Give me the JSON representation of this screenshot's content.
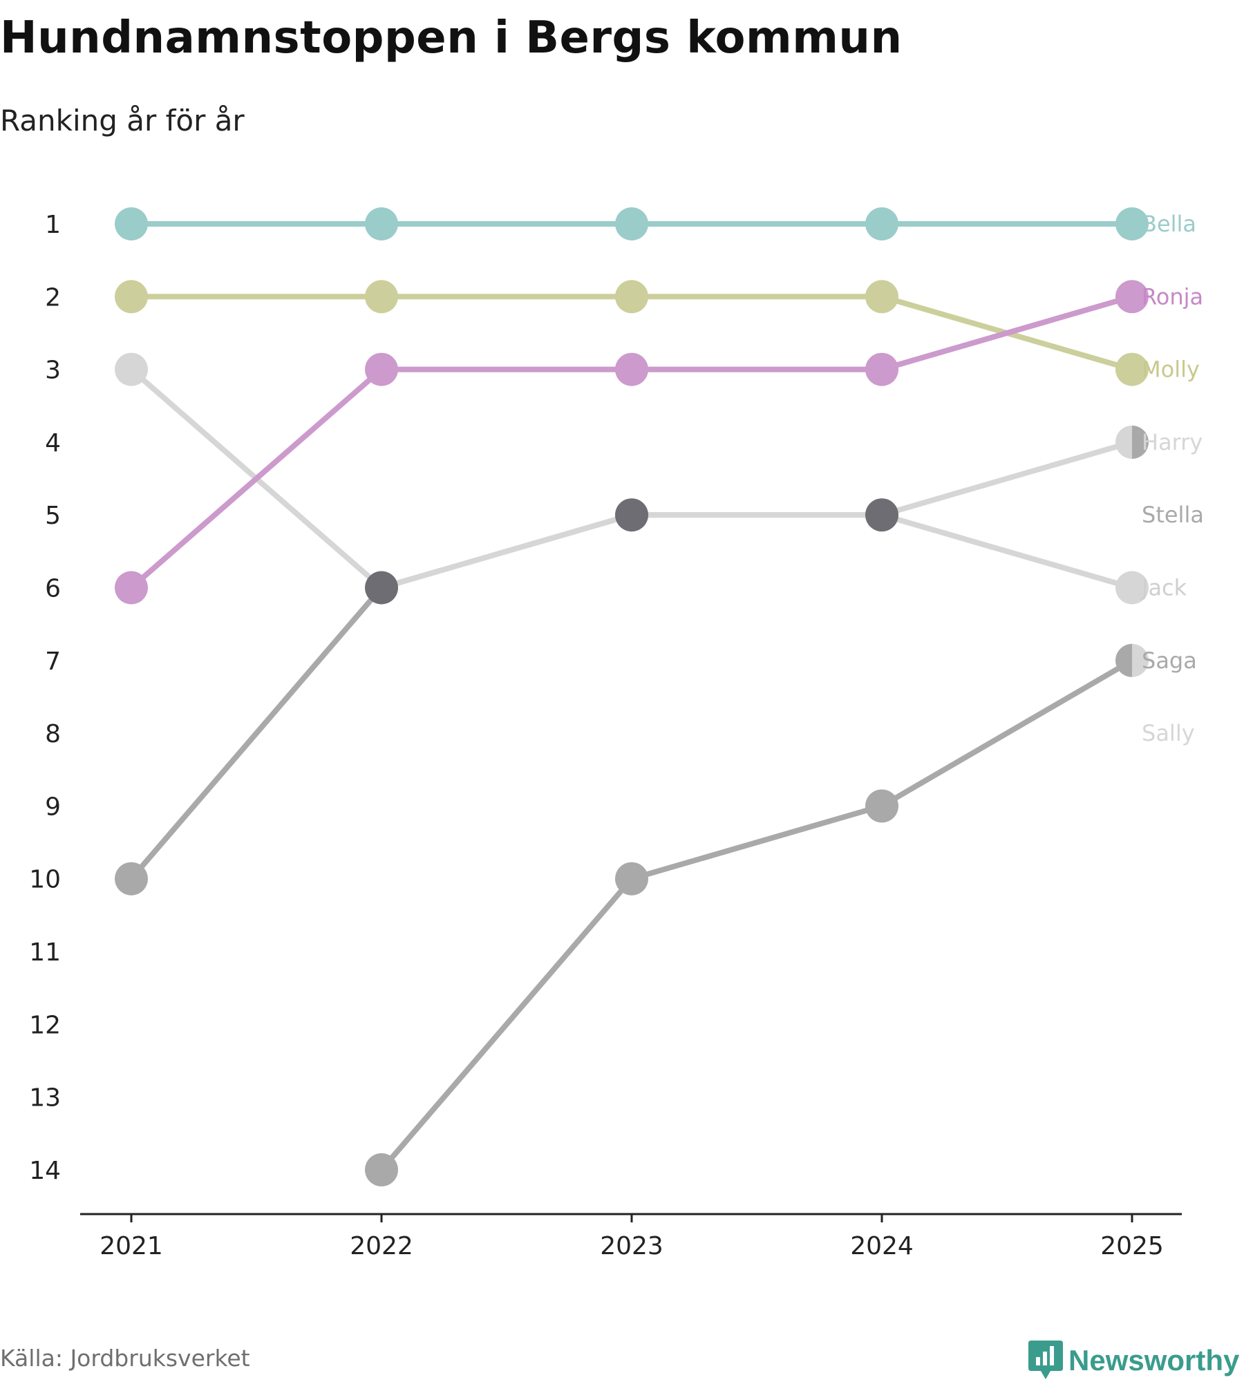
{
  "header": {
    "title": "Hundnamnstoppen i Bergs kommun",
    "subtitle": "Ranking år för år"
  },
  "footer": {
    "source": "Källa: Jordbruksverket",
    "brand": "Newsworthy",
    "brand_color": "#3a9c8d"
  },
  "chart_data": {
    "type": "line",
    "subtype": "bump",
    "title": "Hundnamnstoppen i Bergs kommun",
    "subtitle": "Ranking år för år",
    "xlabel": "",
    "ylabel": "",
    "x": [
      "2021",
      "2022",
      "2023",
      "2024",
      "2025"
    ],
    "y_ticks": [
      "1",
      "2",
      "3",
      "4",
      "5",
      "6",
      "7",
      "8",
      "9",
      "10",
      "11",
      "12",
      "13",
      "14"
    ],
    "ylim": [
      1,
      14
    ],
    "y_inverted": true,
    "grid": false,
    "series": [
      {
        "name": "Bella",
        "color": "#9accca",
        "label_color": "#9accca",
        "values": [
          1,
          1,
          1,
          1,
          1
        ]
      },
      {
        "name": "Molly",
        "color": "#cccf9b",
        "label_color": "#c8c98c",
        "values": [
          2,
          2,
          2,
          2,
          3
        ]
      },
      {
        "name": "Ronja",
        "color": "#cc9acc",
        "label_color": "#c688c6",
        "values": [
          6,
          3,
          3,
          3,
          2
        ]
      },
      {
        "name": "Jack",
        "color": "#d6d6d6",
        "label_color": "#cfcfcf",
        "values": [
          3,
          6,
          5,
          5,
          6
        ]
      },
      {
        "name": "Harry",
        "color": "#d6d6d6",
        "label_color": "#d6d6d6",
        "values": [
          null,
          6,
          5,
          5,
          4
        ]
      },
      {
        "name": "Saga",
        "color": "#a9a9a9",
        "label_color": "#a9a9a9",
        "values": [
          10,
          6,
          null,
          null,
          null
        ]
      },
      {
        "name": "Sally",
        "color": "#a9a9a9",
        "label_color": "#d6d6d6",
        "values": [
          null,
          14,
          10,
          9,
          7
        ]
      },
      {
        "name": "Stella",
        "color": "#6e6d73",
        "label_color": "#a9a9a9",
        "values": [
          null,
          null,
          null,
          null,
          null
        ]
      }
    ],
    "overlap_points": [
      {
        "x": "2022",
        "rank": 6,
        "color": "#6e6d73"
      },
      {
        "x": "2023",
        "rank": 5,
        "color": "#6e6d73"
      },
      {
        "x": "2024",
        "rank": 5,
        "color": "#6e6d73"
      }
    ],
    "split_points": [
      {
        "x": "2025",
        "rank": 4,
        "left_color": "#d6d6d6",
        "right_color": "#a9a9a9"
      },
      {
        "x": "2025",
        "rank": 7,
        "left_color": "#a9a9a9",
        "right_color": "#d6d6d6"
      }
    ],
    "end_labels": [
      {
        "text": "Bella",
        "rank": 1,
        "color": "#9accca"
      },
      {
        "text": "Ronja",
        "rank": 2,
        "color": "#c688c6"
      },
      {
        "text": "Molly",
        "rank": 3,
        "color": "#c8c98c"
      },
      {
        "text": "Harry",
        "rank": 4,
        "color": "#d6d6d6"
      },
      {
        "text": "Stella",
        "rank": 5,
        "color": "#a9a9a9"
      },
      {
        "text": "Jack",
        "rank": 6,
        "color": "#cfcfcf"
      },
      {
        "text": "Saga",
        "rank": 7,
        "color": "#a9a9a9"
      },
      {
        "text": "Sally",
        "rank": 8,
        "color": "#d6d6d6"
      }
    ]
  }
}
